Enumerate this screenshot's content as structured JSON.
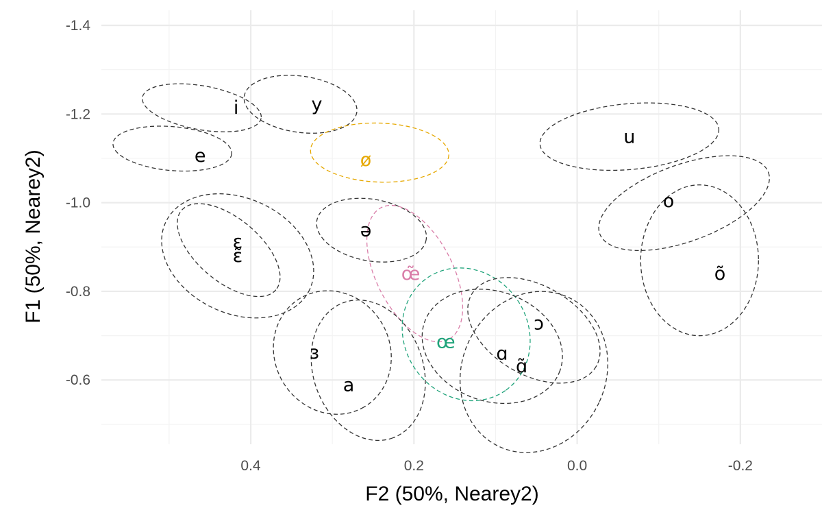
{
  "chart_data": {
    "type": "scatter",
    "title": "",
    "xlabel": "F2 (50%, Nearey2)",
    "ylabel": "F1 (50%, Nearey2)",
    "x_reversed": true,
    "y_reversed": true,
    "xlim": [
      0.583,
      -0.3
    ],
    "ylim": [
      -1.434,
      -0.455
    ],
    "x_ticks": [
      0.4,
      0.2,
      0.0,
      -0.2
    ],
    "x_tick_labels": [
      "0.4",
      "0.2",
      "0.0",
      "-0.2"
    ],
    "y_ticks": [
      -1.4,
      -1.2,
      -1.0,
      -0.8,
      -0.6
    ],
    "y_tick_labels": [
      "-1.4",
      "-1.2",
      "-1.0",
      "-0.8",
      "-0.6"
    ],
    "grid": true,
    "colors": {
      "default": "#333333",
      "ø": "#E6A800",
      "œ̃": "#D97DA8",
      "œ": "#1FA37A"
    },
    "vowels": [
      {
        "label": "i",
        "x": 0.46,
        "y": -1.214,
        "color": "#333333",
        "rx_px": 88,
        "ry_px": 32,
        "rot": 10
      },
      {
        "label": "e",
        "x": 0.496,
        "y": -1.122,
        "color": "#333333",
        "rx_px": 87,
        "ry_px": 32,
        "rot": 5
      },
      {
        "label": "y",
        "x": 0.339,
        "y": -1.222,
        "color": "#333333",
        "rx_px": 83,
        "ry_px": 41,
        "rot": 8
      },
      {
        "label": "ø",
        "x": 0.242,
        "y": -1.113,
        "color": "#E6A800",
        "rx_px": 101,
        "ry_px": 43,
        "rot": 2
      },
      {
        "label": "ə",
        "x": 0.252,
        "y": -0.938,
        "color": "#333333",
        "rx_px": 81,
        "ry_px": 45,
        "rot": 10
      },
      {
        "label": "ɛ̃",
        "x": 0.427,
        "y": -0.893,
        "color": "#333333",
        "rx_px": 90,
        "ry_px": 46,
        "rot": 40
      },
      {
        "label": "ɛ",
        "x": 0.416,
        "y": -0.88,
        "color": "#333333",
        "rx_px": 116,
        "ry_px": 84,
        "rot": 25
      },
      {
        "label": "œ̃",
        "x": 0.199,
        "y": -0.84,
        "color": "#D97DA8",
        "rx_px": 108,
        "ry_px": 56,
        "rot": 63
      },
      {
        "label": "ɜ",
        "x": 0.3,
        "y": -0.662,
        "color": "#333333",
        "rx_px": 92,
        "ry_px": 84,
        "rot": 60
      },
      {
        "label": "a",
        "x": 0.256,
        "y": -0.622,
        "color": "#333333",
        "rx_px": 105,
        "ry_px": 80,
        "rot": 70
      },
      {
        "label": "œ",
        "x": 0.136,
        "y": -0.703,
        "color": "#1FA37A",
        "rx_px": 100,
        "ry_px": 90,
        "rot": 55
      },
      {
        "label": "ɔ",
        "x": 0.053,
        "y": -0.712,
        "color": "#333333",
        "rx_px": 105,
        "ry_px": 65,
        "rot": 30
      },
      {
        "label": "ɑ",
        "x": 0.104,
        "y": -0.676,
        "color": "#333333",
        "rx_px": 105,
        "ry_px": 80,
        "rot": 20
      },
      {
        "label": "ɑ̃",
        "x": 0.053,
        "y": -0.618,
        "color": "#333333",
        "rx_px": 105,
        "ry_px": 120,
        "rot": 25
      },
      {
        "label": "u",
        "x": -0.064,
        "y": -1.149,
        "color": "#333333",
        "rx_px": 131,
        "ry_px": 48,
        "rot": -5
      },
      {
        "label": "o",
        "x": -0.131,
        "y": -0.999,
        "color": "#333333",
        "rx_px": 131,
        "ry_px": 56,
        "rot": -20
      },
      {
        "label": "õ",
        "x": -0.15,
        "y": -0.87,
        "color": "#333333",
        "rx_px": 86,
        "ry_px": 110,
        "rot": 0
      }
    ],
    "label_positions": [
      {
        "label": "i",
        "x": 0.418,
        "y": -1.214
      },
      {
        "label": "e",
        "x": 0.462,
        "y": -1.106
      },
      {
        "label": "y",
        "x": 0.319,
        "y": -1.222
      },
      {
        "label": "ø",
        "x": 0.259,
        "y": -1.097
      },
      {
        "label": "ə",
        "x": 0.259,
        "y": -0.938
      },
      {
        "label": "ɛ̃",
        "x": 0.416,
        "y": -0.88
      },
      {
        "label": "ɛ",
        "x": 0.416,
        "y": -0.912
      },
      {
        "label": "œ̃",
        "x": 0.204,
        "y": -0.84
      },
      {
        "label": "ɜ",
        "x": 0.322,
        "y": -0.662
      },
      {
        "label": "a",
        "x": 0.28,
        "y": -0.589
      },
      {
        "label": "œ",
        "x": 0.161,
        "y": -0.686
      },
      {
        "label": "ɔ",
        "x": 0.047,
        "y": -0.728
      },
      {
        "label": "ɑ",
        "x": 0.092,
        "y": -0.66
      },
      {
        "label": "ɑ̃",
        "x": 0.068,
        "y": -0.631
      },
      {
        "label": "u",
        "x": -0.064,
        "y": -1.149
      },
      {
        "label": "o",
        "x": -0.112,
        "y": -1.004
      },
      {
        "label": "õ",
        "x": -0.175,
        "y": -0.84
      }
    ]
  }
}
